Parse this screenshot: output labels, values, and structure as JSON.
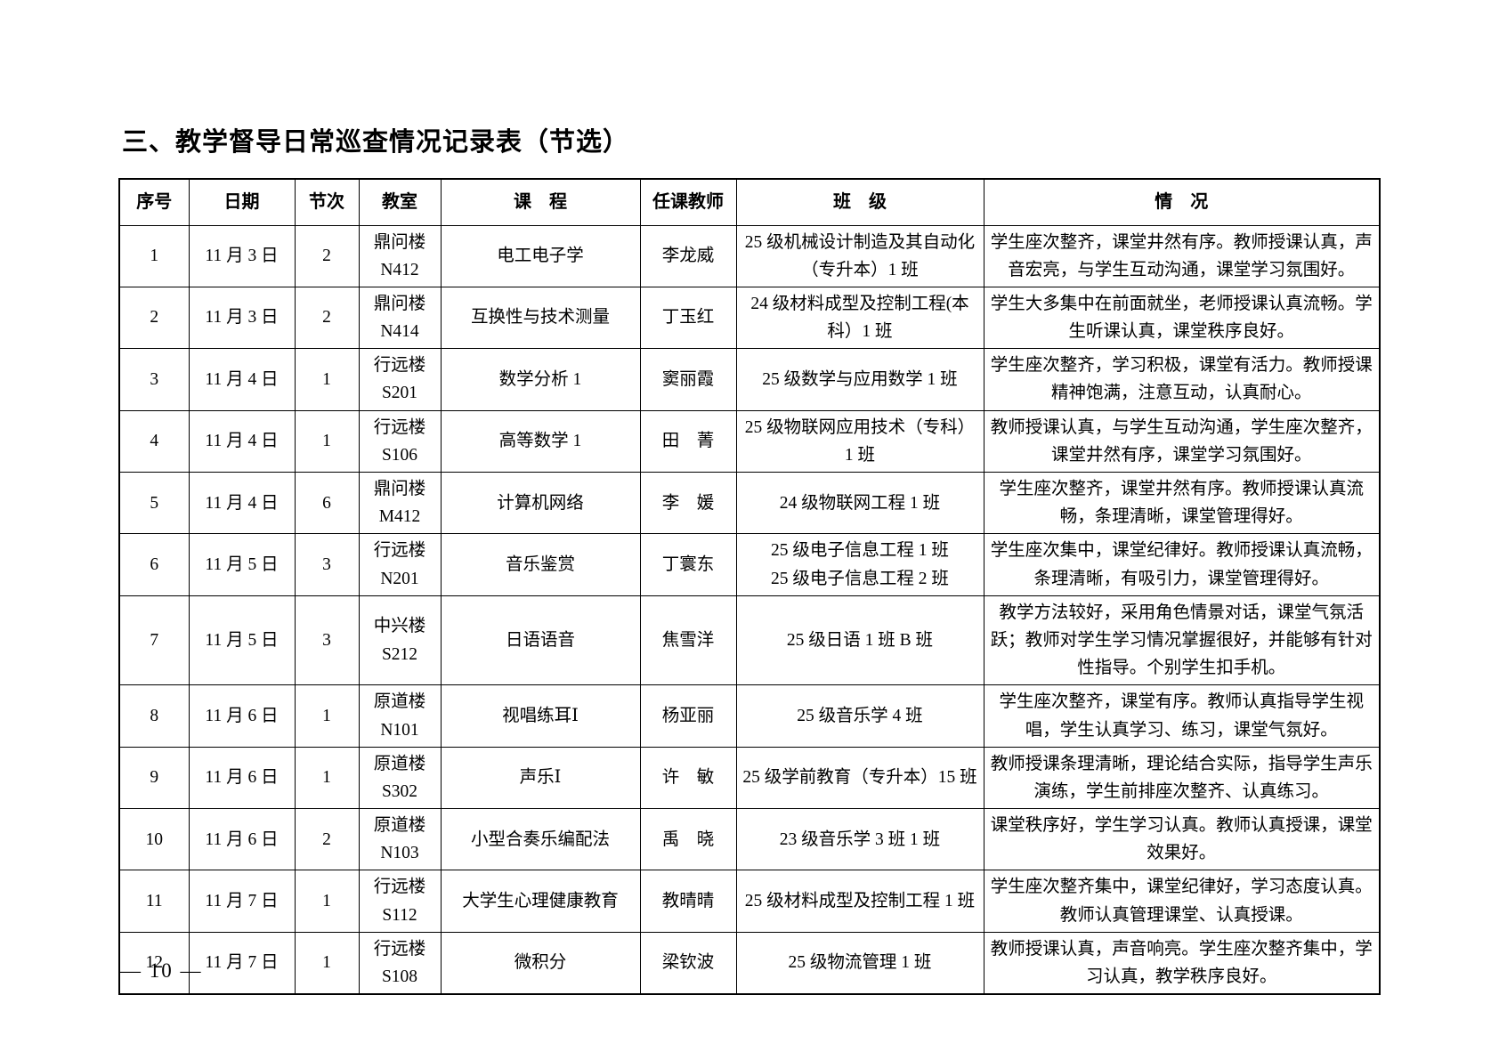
{
  "page": {
    "title": "三、教学督导日常巡查情况记录表（节选）",
    "page_number_display": "— 10 —"
  },
  "table": {
    "headers": {
      "no": "序号",
      "date": "日期",
      "period": "节次",
      "room": "教室",
      "course": "课　程",
      "teacher": "任课教师",
      "class": "班　级",
      "note": "情　况"
    },
    "rows": [
      {
        "no": "1",
        "date": "11 月 3 日",
        "period": "2",
        "room": "鼎问楼\nN412",
        "course": "电工电子学",
        "teacher": "李龙威",
        "class": "25 级机械设计制造及其自动化（专升本）1 班",
        "note": "学生座次整齐，课堂井然有序。教师授课认真，声音宏亮，与学生互动沟通，课堂学习氛围好。"
      },
      {
        "no": "2",
        "date": "11 月 3 日",
        "period": "2",
        "room": "鼎问楼\nN414",
        "course": "互换性与技术测量",
        "teacher": "丁玉红",
        "class": "24 级材料成型及控制工程(本科）1 班",
        "note": "学生大多集中在前面就坐，老师授课认真流畅。学生听课认真，课堂秩序良好。"
      },
      {
        "no": "3",
        "date": "11 月 4 日",
        "period": "1",
        "room": "行远楼\nS201",
        "course": "数学分析 1",
        "teacher": "窦丽霞",
        "class": "25 级数学与应用数学 1 班",
        "note": "学生座次整齐，学习积极，课堂有活力。教师授课精神饱满，注意互动，认真耐心。"
      },
      {
        "no": "4",
        "date": "11 月 4 日",
        "period": "1",
        "room": "行远楼\nS106",
        "course": "高等数学 1",
        "teacher": "田　菁",
        "class": "25 级物联网应用技术（专科）1 班",
        "note": "教师授课认真，与学生互动沟通，学生座次整齐，课堂井然有序，课堂学习氛围好。"
      },
      {
        "no": "5",
        "date": "11 月 4 日",
        "period": "6",
        "room": "鼎问楼\nM412",
        "course": "计算机网络",
        "teacher": "李　媛",
        "class": "24 级物联网工程 1 班",
        "note": "学生座次整齐，课堂井然有序。教师授课认真流畅，条理清晰，课堂管理得好。"
      },
      {
        "no": "6",
        "date": "11 月 5 日",
        "period": "3",
        "room": "行远楼\nN201",
        "course": "音乐鉴赏",
        "teacher": "丁寰东",
        "class": "25 级电子信息工程 1 班\n25 级电子信息工程 2 班",
        "note": "学生座次集中，课堂纪律好。教师授课认真流畅，条理清晰，有吸引力，课堂管理得好。"
      },
      {
        "no": "7",
        "date": "11 月 5 日",
        "period": "3",
        "room": "中兴楼\nS212",
        "course": "日语语音",
        "teacher": "焦雪洋",
        "class": "25 级日语 1 班 B 班",
        "note": "教学方法较好，采用角色情景对话，课堂气氛活跃；教师对学生学习情况掌握很好，并能够有针对性指导。个别学生扣手机。"
      },
      {
        "no": "8",
        "date": "11 月 6 日",
        "period": "1",
        "room": "原道楼\nN101",
        "course": "视唱练耳Ⅰ",
        "teacher": "杨亚丽",
        "class": "25 级音乐学 4 班",
        "note": "学生座次整齐，课堂有序。教师认真指导学生视唱，学生认真学习、练习，课堂气氛好。"
      },
      {
        "no": "9",
        "date": "11 月 6 日",
        "period": "1",
        "room": "原道楼\nS302",
        "course": "声乐Ⅰ",
        "teacher": "许　敏",
        "class": "25 级学前教育（专升本）15 班",
        "note": "教师授课条理清晰，理论结合实际，指导学生声乐演练，学生前排座次整齐、认真练习。"
      },
      {
        "no": "10",
        "date": "11 月 6 日",
        "period": "2",
        "room": "原道楼\nN103",
        "course": "小型合奏乐编配法",
        "teacher": "禹　晓",
        "class": "23 级音乐学 3 班 1 班",
        "note": "课堂秩序好，学生学习认真。教师认真授课，课堂效果好。"
      },
      {
        "no": "11",
        "date": "11 月 7 日",
        "period": "1",
        "room": "行远楼\nS112",
        "course": "大学生心理健康教育",
        "teacher": "教晴晴",
        "class": "25 级材料成型及控制工程 1 班",
        "note": "学生座次整齐集中，课堂纪律好，学习态度认真。教师认真管理课堂、认真授课。"
      },
      {
        "no": "12",
        "date": "11 月 7 日",
        "period": "1",
        "room": "行远楼\nS108",
        "course": "微积分",
        "teacher": "梁钦波",
        "class": "25 级物流管理 1 班",
        "note": "教师授课认真，声音响亮。学生座次整齐集中，学习认真，教学秩序良好。"
      }
    ]
  }
}
